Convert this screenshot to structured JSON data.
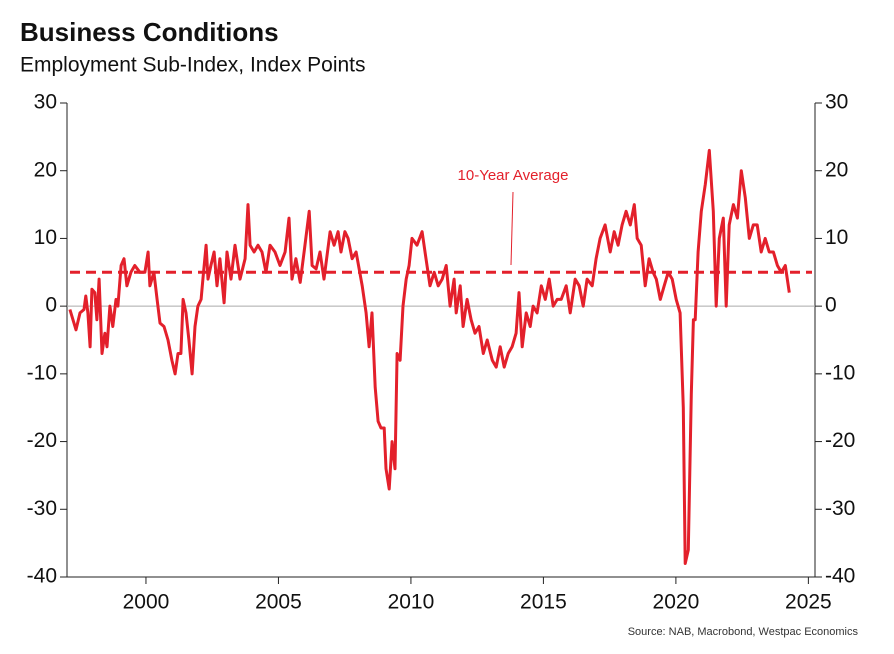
{
  "chart_data": {
    "type": "line",
    "title": "Business Conditions",
    "subtitle": "Employment Sub-Index, Index Points",
    "source": "Source: NAB, Macrobond, Westpac Economics",
    "xlim": [
      1997.02,
      2025.25
    ],
    "xticks": [
      2000,
      2005,
      2010,
      2015,
      2020,
      2025
    ],
    "ylim": [
      -40,
      30
    ],
    "yticks": [
      -40,
      -30,
      -20,
      -10,
      0,
      10,
      20,
      30
    ],
    "average_line": {
      "label": "10-Year Average",
      "value": 5,
      "color": "#e3202b"
    },
    "x": [
      1997.13,
      1997.36,
      1997.51,
      1997.66,
      1997.73,
      1997.81,
      1997.89,
      1997.96,
      1998.07,
      1998.15,
      1998.23,
      1998.34,
      1998.45,
      1998.53,
      1998.64,
      1998.75,
      1998.87,
      1998.94,
      1999.06,
      1999.17,
      1999.28,
      1999.43,
      1999.58,
      1999.77,
      1999.96,
      2000.08,
      2000.15,
      2000.3,
      2000.42,
      2000.53,
      2000.68,
      2000.83,
      2000.98,
      2001.1,
      2001.21,
      2001.32,
      2001.4,
      2001.51,
      2001.62,
      2001.74,
      2001.85,
      2001.96,
      2002.08,
      2002.15,
      2002.27,
      2002.34,
      2002.45,
      2002.57,
      2002.68,
      2002.79,
      2002.95,
      2003.06,
      2003.21,
      2003.36,
      2003.55,
      2003.74,
      2003.85,
      2003.93,
      2004.08,
      2004.23,
      2004.38,
      2004.53,
      2004.68,
      2004.87,
      2005.06,
      2005.25,
      2005.4,
      2005.51,
      2005.66,
      2005.82,
      2005.97,
      2006.16,
      2006.27,
      2006.42,
      2006.57,
      2006.72,
      2006.95,
      2007.1,
      2007.25,
      2007.36,
      2007.51,
      2007.63,
      2007.78,
      2007.93,
      2008.16,
      2008.31,
      2008.42,
      2008.53,
      2008.65,
      2008.76,
      2008.87,
      2008.99,
      2009.06,
      2009.18,
      2009.29,
      2009.4,
      2009.48,
      2009.59,
      2009.7,
      2009.82,
      2009.93,
      2010.04,
      2010.23,
      2010.42,
      2010.57,
      2010.72,
      2010.88,
      2011.03,
      2011.18,
      2011.33,
      2011.48,
      2011.63,
      2011.71,
      2011.86,
      2011.97,
      2012.12,
      2012.27,
      2012.42,
      2012.57,
      2012.73,
      2012.88,
      2013.07,
      2013.22,
      2013.37,
      2013.52,
      2013.67,
      2013.82,
      2013.97,
      2014.08,
      2014.2,
      2014.35,
      2014.5,
      2014.61,
      2014.76,
      2014.92,
      2015.07,
      2015.22,
      2015.37,
      2015.52,
      2015.67,
      2015.86,
      2016.01,
      2016.2,
      2016.35,
      2016.5,
      2016.65,
      2016.84,
      2016.99,
      2017.14,
      2017.33,
      2017.52,
      2017.67,
      2017.82,
      2017.97,
      2018.12,
      2018.28,
      2018.43,
      2018.54,
      2018.69,
      2018.84,
      2018.99,
      2019.14,
      2019.26,
      2019.41,
      2019.56,
      2019.71,
      2019.86,
      2020.01,
      2020.16,
      2020.28,
      2020.35,
      2020.47,
      2020.58,
      2020.66,
      2020.73,
      2020.84,
      2020.96,
      2021.11,
      2021.26,
      2021.41,
      2021.52,
      2021.64,
      2021.79,
      2021.9,
      2022.01,
      2022.17,
      2022.32,
      2022.47,
      2022.62,
      2022.77,
      2022.92,
      2023.07,
      2023.22,
      2023.37,
      2023.52,
      2023.68,
      2023.83,
      2023.98,
      2024.13,
      2024.28
    ],
    "series": [
      {
        "name": "Employment Sub-Index",
        "color": "#e3202b",
        "values": [
          -0.5,
          -3.5,
          -1,
          -0.5,
          1.5,
          -1,
          -6,
          2.5,
          2,
          -2,
          4,
          -7,
          -4,
          -6,
          0,
          -3,
          1,
          0,
          6,
          7,
          3,
          5,
          6,
          5,
          5,
          8,
          3,
          5,
          1,
          -2.5,
          -3,
          -5,
          -8,
          -10,
          -7,
          -7,
          1,
          -1,
          -5,
          -10,
          -3,
          0,
          1,
          4,
          9,
          4,
          6,
          8,
          3,
          7,
          0.5,
          8,
          4,
          9,
          4,
          7,
          15,
          9,
          8,
          9,
          8,
          5,
          9,
          8,
          6,
          8,
          13,
          4,
          7,
          3.5,
          8,
          14,
          6,
          5.5,
          8,
          4,
          11,
          9,
          11,
          8,
          11,
          10,
          7,
          8,
          3,
          -1,
          -6,
          -1,
          -12,
          -17,
          -18,
          -18,
          -24,
          -27,
          -20,
          -24,
          -7,
          -8,
          0,
          4,
          6,
          10,
          9,
          11,
          7,
          3,
          5,
          3,
          4,
          6,
          0,
          4,
          -1,
          3,
          -3,
          1,
          -2,
          -4,
          -3,
          -7,
          -5,
          -8,
          -9,
          -6,
          -9,
          -7,
          -6,
          -4,
          2,
          -6,
          -1,
          -3,
          0,
          -1,
          3,
          1,
          4,
          0,
          1,
          1,
          3,
          -1,
          4,
          3,
          0,
          4,
          3,
          7,
          10,
          12,
          8,
          11,
          9,
          12,
          14,
          12,
          15,
          10,
          9,
          3,
          7,
          5,
          4,
          1,
          3,
          5,
          4,
          1,
          -1,
          -15,
          -38,
          -36,
          -13,
          -2,
          -2,
          8,
          14,
          18,
          23,
          14,
          0,
          10,
          13,
          0,
          12,
          15,
          13,
          20,
          16,
          10,
          12,
          12,
          8,
          10,
          8,
          8,
          6,
          5,
          6,
          2
        ]
      }
    ]
  }
}
